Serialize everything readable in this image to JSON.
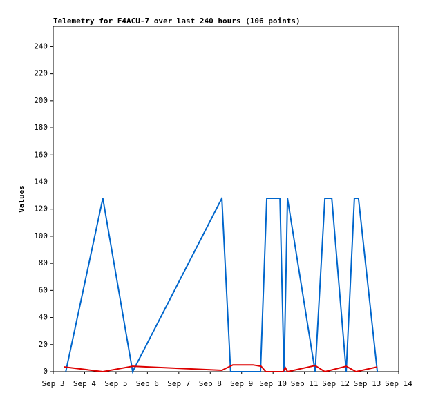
{
  "chart_data": {
    "type": "line",
    "title": "Telemetry for F4ACU-7 over last 240 hours (106 points)",
    "y_label": "Values",
    "xlim": [
      3,
      14
    ],
    "xticks": [
      {
        "value": 3,
        "label": "Sep 3"
      },
      {
        "value": 4,
        "label": "Sep 4"
      },
      {
        "value": 5,
        "label": "Sep 5"
      },
      {
        "value": 6,
        "label": "Sep 6"
      },
      {
        "value": 7,
        "label": "Sep 7"
      },
      {
        "value": 8,
        "label": "Sep 8"
      },
      {
        "value": 9,
        "label": "Sep 9"
      },
      {
        "value": 10,
        "label": "Sep 10"
      },
      {
        "value": 11,
        "label": "Sep 11"
      },
      {
        "value": 12,
        "label": "Sep 12"
      },
      {
        "value": 13,
        "label": "Sep 13"
      },
      {
        "value": 14,
        "label": "Sep 14"
      }
    ],
    "ylim": [
      0,
      255
    ],
    "yticks": [
      0,
      20,
      40,
      60,
      80,
      100,
      120,
      140,
      160,
      180,
      200,
      220,
      240
    ],
    "series": [
      {
        "color": "#0066cc",
        "x": [
          3.4,
          4.58,
          5.53,
          8.37,
          8.65,
          9.6,
          9.8,
          10.22,
          10.35,
          10.46,
          11.34,
          11.65,
          11.87,
          12.33,
          12.59,
          12.72,
          13.32
        ],
        "values": [
          0,
          128,
          0,
          128,
          0,
          0,
          128,
          128,
          0,
          128,
          0,
          128,
          128,
          0,
          128,
          128,
          0
        ]
      },
      {
        "color": "#dd0000",
        "x": [
          3.35,
          4.58,
          5.53,
          8.37,
          8.72,
          9.36,
          9.62,
          9.77,
          10.32,
          10.39,
          10.46,
          11.34,
          11.65,
          12.33,
          12.64,
          13.32
        ],
        "values": [
          3.5,
          0,
          4,
          1,
          5,
          5,
          4,
          0,
          0,
          3,
          0,
          4.5,
          0,
          4,
          0,
          3.5
        ]
      }
    ]
  }
}
